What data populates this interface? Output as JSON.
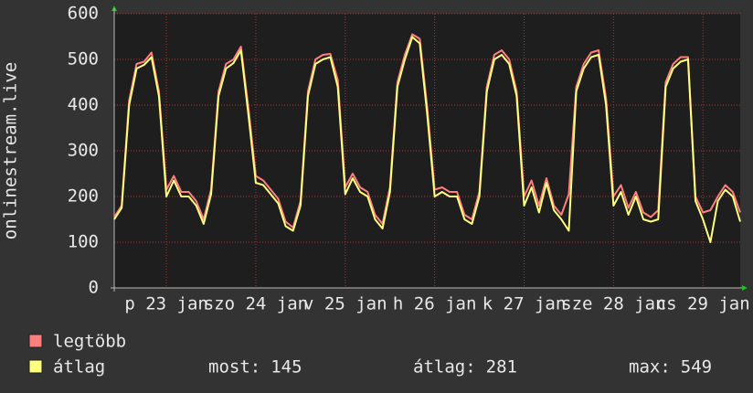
{
  "chart_data": {
    "type": "line",
    "y_axis_label": "onlinestream.live",
    "ylim": [
      0,
      600
    ],
    "yticks": [
      0,
      100,
      200,
      300,
      400,
      500,
      600
    ],
    "xlim": [
      0,
      84
    ],
    "xticks": [
      {
        "value": 7,
        "label": "p 23 jan"
      },
      {
        "value": 19,
        "label": "szo 24 jan"
      },
      {
        "value": 31,
        "label": "v 25 jan"
      },
      {
        "value": 43,
        "label": "h 26 jan"
      },
      {
        "value": 55,
        "label": "k 27 jan"
      },
      {
        "value": 67,
        "label": "sze 28 jan"
      },
      {
        "value": 79,
        "label": "cs 29 jan"
      }
    ],
    "grid": true,
    "series": [
      {
        "name": "legtöbb",
        "color": "#ff7f7f",
        "values": [
          155,
          180,
          410,
          490,
          495,
          515,
          430,
          215,
          245,
          210,
          210,
          190,
          150,
          215,
          430,
          490,
          500,
          528,
          395,
          245,
          235,
          215,
          195,
          145,
          132,
          190,
          430,
          500,
          510,
          512,
          455,
          220,
          250,
          220,
          210,
          160,
          140,
          220,
          450,
          510,
          555,
          545,
          395,
          215,
          220,
          210,
          210,
          160,
          150,
          210,
          440,
          510,
          520,
          500,
          430,
          200,
          235,
          180,
          240,
          180,
          160,
          205,
          440,
          490,
          515,
          520,
          415,
          200,
          225,
          175,
          210,
          165,
          155,
          170,
          450,
          490,
          505,
          505,
          200,
          165,
          170,
          200,
          225,
          210,
          165
        ]
      },
      {
        "name": "átlag",
        "color": "#ffff80",
        "values": [
          150,
          175,
          400,
          480,
          488,
          505,
          420,
          200,
          235,
          200,
          200,
          180,
          140,
          205,
          420,
          480,
          492,
          520,
          380,
          230,
          225,
          205,
          185,
          135,
          125,
          180,
          420,
          490,
          500,
          505,
          440,
          205,
          240,
          210,
          200,
          150,
          130,
          210,
          440,
          500,
          549,
          535,
          380,
          200,
          210,
          200,
          200,
          150,
          140,
          200,
          430,
          500,
          510,
          490,
          420,
          180,
          220,
          165,
          230,
          170,
          150,
          125,
          430,
          480,
          505,
          510,
          400,
          180,
          210,
          160,
          200,
          150,
          145,
          150,
          440,
          480,
          495,
          500,
          190,
          150,
          100,
          190,
          215,
          200,
          145
        ]
      }
    ],
    "stats": [
      {
        "label": "most:",
        "value": 145
      },
      {
        "label": "átlag:",
        "value": 281
      },
      {
        "label": "max:",
        "value": 549
      }
    ]
  }
}
